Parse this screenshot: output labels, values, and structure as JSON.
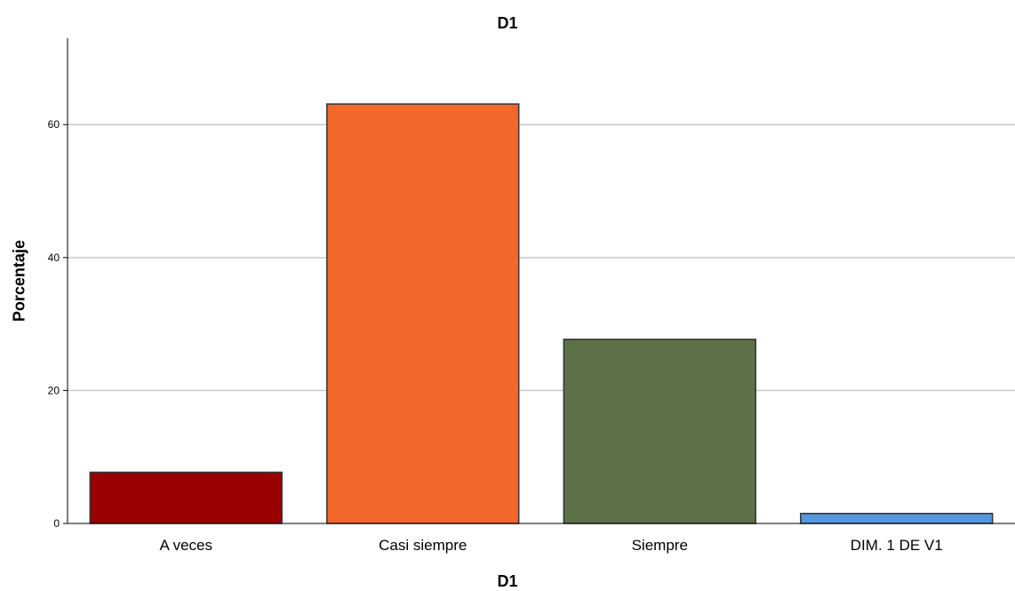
{
  "chart_data": {
    "type": "bar",
    "title": "D1",
    "xlabel": "D1",
    "ylabel": "Porcentaje",
    "categories": [
      "A veces",
      "Casi siempre",
      "Siempre",
      "DIM. 1 DE V1"
    ],
    "values": [
      7.7,
      63.1,
      27.7,
      1.5
    ],
    "colors": [
      "#990000",
      "#f3672b",
      "#5c704a",
      "#5597e1"
    ],
    "ylim": [
      0,
      73
    ],
    "yticks": [
      0,
      20,
      40,
      60
    ],
    "grid": true,
    "legend": "none"
  }
}
